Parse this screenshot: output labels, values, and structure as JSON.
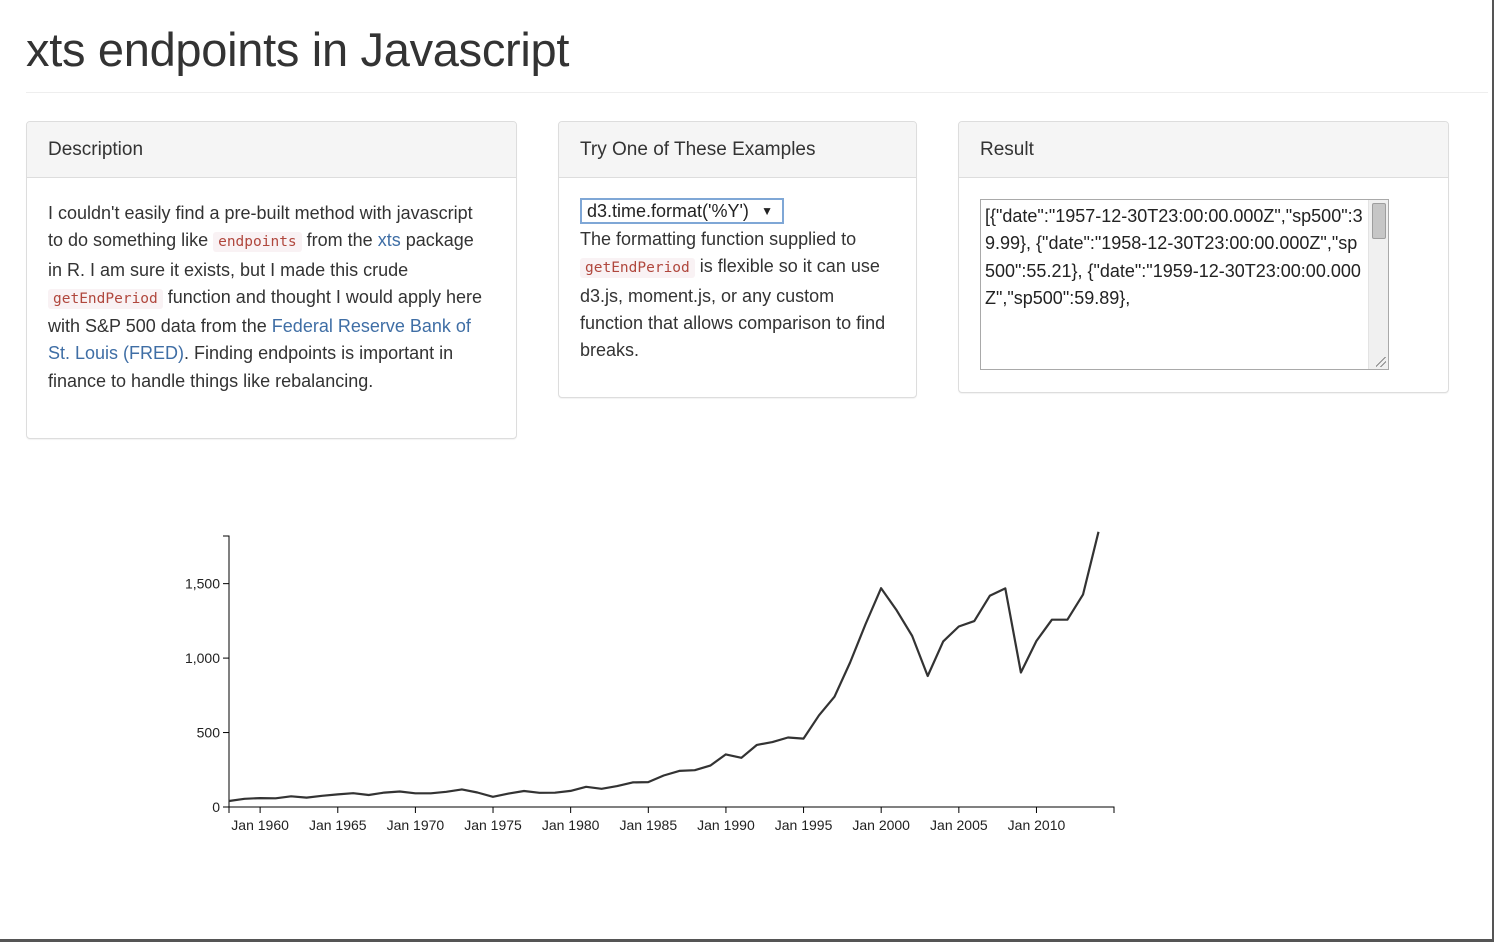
{
  "page": {
    "title": "xts endpoints in Javascript"
  },
  "description_panel": {
    "heading": "Description",
    "text_1": "I couldn't easily find a pre-built method with javascript to do something like ",
    "code_1": "endpoints",
    "text_2": " from the ",
    "link_1": "xts",
    "text_3": " package in R. I am sure it exists, but I made this crude ",
    "code_2": "getEndPeriod",
    "text_4": " function and thought I would apply here with S&P 500 data from the ",
    "link_2": "Federal Reserve Bank of St. Louis (FRED)",
    "text_5": ". Finding endpoints is important in finance to handle things like rebalancing."
  },
  "examples_panel": {
    "heading": "Try One of These Examples",
    "select_value": "d3.time.format('%Y')",
    "select_arrow": "▼",
    "text_1": "The formatting function supplied to ",
    "code_1": "getEndPeriod",
    "text_2": " is flexible so it can use d3.js, moment.js, or any custom function that allows comparison to find breaks."
  },
  "result_panel": {
    "heading": "Result",
    "textarea_value": "[{\"date\":\"1957-12-30T23:00:00.000Z\",\"sp500\":39.99}, {\"date\":\"1958-12-30T23:00:00.000Z\",\"sp500\":55.21}, {\"date\":\"1959-12-30T23:00:00.000Z\",\"sp500\":59.89},"
  },
  "chart_data": {
    "type": "line",
    "title": "",
    "xlabel": "",
    "ylabel": "",
    "grid": false,
    "line_color": "#333333",
    "xlim": [
      "1957-12-30",
      "2014-12-30"
    ],
    "ylim": [
      0,
      1820
    ],
    "x_ticks": [
      "Jan 1960",
      "Jan 1965",
      "Jan 1970",
      "Jan 1975",
      "Jan 1980",
      "Jan 1985",
      "Jan 1990",
      "Jan 1995",
      "Jan 2000",
      "Jan 2005",
      "Jan 2010"
    ],
    "y_ticks": [
      0,
      500,
      1000,
      1500
    ],
    "y_tick_labels": [
      "0",
      "500",
      "1,000",
      "1,500"
    ],
    "series": [
      {
        "x": [
          "1957-12-30",
          "1958-12-30",
          "1959-12-30",
          "1960-12-30",
          "1961-12-30",
          "1962-12-30",
          "1963-12-30",
          "1964-12-30",
          "1965-12-30",
          "1966-12-30",
          "1967-12-30",
          "1968-12-30",
          "1969-12-30",
          "1970-12-30",
          "1971-12-30",
          "1972-12-30",
          "1973-12-30",
          "1974-12-30",
          "1975-12-30",
          "1976-12-30",
          "1977-12-30",
          "1978-12-30",
          "1979-12-30",
          "1980-12-30",
          "1981-12-30",
          "1982-12-30",
          "1983-12-30",
          "1984-12-30",
          "1985-12-30",
          "1986-12-30",
          "1987-12-30",
          "1988-12-30",
          "1989-12-30",
          "1990-12-30",
          "1991-12-30",
          "1992-12-30",
          "1993-12-30",
          "1994-12-30",
          "1995-12-30",
          "1996-12-30",
          "1997-12-30",
          "1998-12-30",
          "1999-12-30",
          "2000-12-30",
          "2001-12-30",
          "2002-12-30",
          "2003-12-30",
          "2004-12-30",
          "2005-12-30",
          "2006-12-30",
          "2007-12-30",
          "2008-12-30",
          "2009-12-30",
          "2010-12-30",
          "2011-12-30",
          "2012-12-30",
          "2013-12-30"
        ],
        "values": [
          39.99,
          55.21,
          59.89,
          58.11,
          71.55,
          63.1,
          75.02,
          84.75,
          92.43,
          80.33,
          96.47,
          103.86,
          92.06,
          92.15,
          102.09,
          118.05,
          97.55,
          68.56,
          90.19,
          107.46,
          95.1,
          96.11,
          107.94,
          135.76,
          122.55,
          140.64,
          164.93,
          167.24,
          211.28,
          242.17,
          247.08,
          277.72,
          353.4,
          330.22,
          417.09,
          435.71,
          466.45,
          459.27,
          615.93,
          740.74,
          970.43,
          1229.23,
          1469.25,
          1320.28,
          1148.08,
          879.82,
          1111.92,
          1211.92,
          1248.29,
          1418.3,
          1468.36,
          903.25,
          1115.1,
          1257.64,
          1257.6,
          1426.19,
          1848.36
        ]
      }
    ]
  }
}
